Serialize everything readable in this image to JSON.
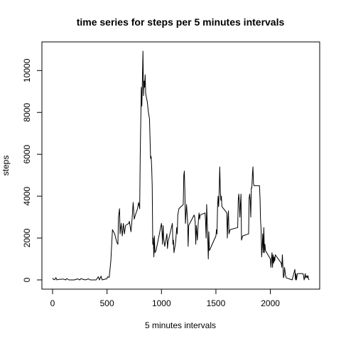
{
  "chart_data": {
    "type": "line",
    "title": "time series for steps per 5 minutes intervals",
    "xlabel": "5 minutes intervals",
    "ylabel": "steps",
    "xlim": [
      0,
      2355
    ],
    "ylim": [
      0,
      10927
    ],
    "x_ticks": [
      0,
      500,
      1000,
      1500,
      2000
    ],
    "y_ticks": [
      0,
      2000,
      4000,
      6000,
      8000,
      10000
    ],
    "grid": false,
    "series": [
      {
        "color": "#000000",
        "points": [
          [
            0,
            91
          ],
          [
            10,
            18
          ],
          [
            20,
            7
          ],
          [
            30,
            110
          ],
          [
            40,
            0
          ],
          [
            50,
            20
          ],
          [
            60,
            25
          ],
          [
            100,
            40
          ],
          [
            120,
            0
          ],
          [
            130,
            60
          ],
          [
            150,
            0
          ],
          [
            200,
            0
          ],
          [
            230,
            50
          ],
          [
            250,
            0
          ],
          [
            260,
            60
          ],
          [
            300,
            0
          ],
          [
            330,
            50
          ],
          [
            345,
            0
          ],
          [
            400,
            0
          ],
          [
            420,
            150
          ],
          [
            430,
            0
          ],
          [
            445,
            180
          ],
          [
            455,
            0
          ],
          [
            500,
            60
          ],
          [
            505,
            150
          ],
          [
            520,
            120
          ],
          [
            535,
            900
          ],
          [
            550,
            2400
          ],
          [
            570,
            2200
          ],
          [
            590,
            1800
          ],
          [
            600,
            1700
          ],
          [
            605,
            3000
          ],
          [
            615,
            3400
          ],
          [
            620,
            2200
          ],
          [
            630,
            2700
          ],
          [
            640,
            2100
          ],
          [
            650,
            2700
          ],
          [
            660,
            2200
          ],
          [
            670,
            2600
          ],
          [
            700,
            2700
          ],
          [
            705,
            2800
          ],
          [
            720,
            2300
          ],
          [
            730,
            2900
          ],
          [
            740,
            3700
          ],
          [
            750,
            2900
          ],
          [
            760,
            3100
          ],
          [
            780,
            3400
          ],
          [
            790,
            3700
          ],
          [
            800,
            3400
          ],
          [
            805,
            6000
          ],
          [
            815,
            9200
          ],
          [
            820,
            8300
          ],
          [
            830,
            10927
          ],
          [
            835,
            8800
          ],
          [
            840,
            9500
          ],
          [
            845,
            9200
          ],
          [
            850,
            9800
          ],
          [
            855,
            8900
          ],
          [
            870,
            8500
          ],
          [
            880,
            8000
          ],
          [
            890,
            7700
          ],
          [
            900,
            5800
          ],
          [
            905,
            5900
          ],
          [
            910,
            5400
          ],
          [
            915,
            4500
          ],
          [
            920,
            1700
          ],
          [
            925,
            2000
          ],
          [
            930,
            1100
          ],
          [
            935,
            2100
          ],
          [
            940,
            1300
          ],
          [
            950,
            1400
          ],
          [
            1000,
            2700
          ],
          [
            1005,
            2300
          ],
          [
            1010,
            1700
          ],
          [
            1015,
            2600
          ],
          [
            1020,
            2000
          ],
          [
            1030,
            1600
          ],
          [
            1050,
            2200
          ],
          [
            1055,
            1500
          ],
          [
            1060,
            1800
          ],
          [
            1100,
            2700
          ],
          [
            1105,
            1700
          ],
          [
            1110,
            1900
          ],
          [
            1115,
            1300
          ],
          [
            1130,
            1800
          ],
          [
            1140,
            2500
          ],
          [
            1145,
            2200
          ],
          [
            1150,
            3100
          ],
          [
            1160,
            3400
          ],
          [
            1200,
            3600
          ],
          [
            1205,
            5000
          ],
          [
            1210,
            5200
          ],
          [
            1215,
            4200
          ],
          [
            1220,
            2700
          ],
          [
            1230,
            3600
          ],
          [
            1240,
            2800
          ],
          [
            1245,
            1600
          ],
          [
            1250,
            2600
          ],
          [
            1300,
            3100
          ],
          [
            1305,
            3000
          ],
          [
            1310,
            2700
          ],
          [
            1315,
            1700
          ],
          [
            1320,
            2600
          ],
          [
            1330,
            1900
          ],
          [
            1335,
            2500
          ],
          [
            1340,
            2900
          ],
          [
            1345,
            3200
          ],
          [
            1350,
            2900
          ],
          [
            1355,
            3100
          ],
          [
            1400,
            3200
          ],
          [
            1405,
            2800
          ],
          [
            1410,
            2000
          ],
          [
            1415,
            3600
          ],
          [
            1420,
            2800
          ],
          [
            1425,
            2000
          ],
          [
            1430,
            1000
          ],
          [
            1435,
            2300
          ],
          [
            1440,
            1400
          ],
          [
            1500,
            2100
          ],
          [
            1505,
            2400
          ],
          [
            1510,
            2200
          ],
          [
            1515,
            3500
          ],
          [
            1520,
            4000
          ],
          [
            1525,
            3500
          ],
          [
            1530,
            4200
          ],
          [
            1535,
            5400
          ],
          [
            1540,
            4400
          ],
          [
            1545,
            3800
          ],
          [
            1550,
            4000
          ],
          [
            1555,
            3500
          ],
          [
            1600,
            3200
          ],
          [
            1605,
            2000
          ],
          [
            1610,
            2900
          ],
          [
            1615,
            3300
          ],
          [
            1620,
            2200
          ],
          [
            1630,
            2400
          ],
          [
            1700,
            2500
          ],
          [
            1705,
            3800
          ],
          [
            1710,
            4100
          ],
          [
            1715,
            3700
          ],
          [
            1720,
            3000
          ],
          [
            1725,
            3600
          ],
          [
            1730,
            4100
          ],
          [
            1735,
            1900
          ],
          [
            1740,
            2000
          ],
          [
            1745,
            2100
          ],
          [
            1800,
            2200
          ],
          [
            1805,
            3900
          ],
          [
            1810,
            4100
          ],
          [
            1815,
            3800
          ],
          [
            1820,
            3000
          ],
          [
            1825,
            4400
          ],
          [
            1830,
            4400
          ],
          [
            1835,
            5000
          ],
          [
            1840,
            5400
          ],
          [
            1845,
            4600
          ],
          [
            1850,
            4500
          ],
          [
            1855,
            4500
          ],
          [
            1900,
            4500
          ],
          [
            1905,
            3900
          ],
          [
            1910,
            2800
          ],
          [
            1915,
            2400
          ],
          [
            1920,
            1100
          ],
          [
            1925,
            1600
          ],
          [
            1930,
            2200
          ],
          [
            1935,
            1300
          ],
          [
            1940,
            2500
          ],
          [
            1945,
            1300
          ],
          [
            1950,
            1700
          ],
          [
            1955,
            1400
          ],
          [
            2000,
            1000
          ],
          [
            2005,
            600
          ],
          [
            2010,
            1000
          ],
          [
            2015,
            1300
          ],
          [
            2020,
            600
          ],
          [
            2025,
            1200
          ],
          [
            2030,
            800
          ],
          [
            2035,
            1100
          ],
          [
            2040,
            900
          ],
          [
            2045,
            1200
          ],
          [
            2100,
            800
          ],
          [
            2105,
            600
          ],
          [
            2110,
            1200
          ],
          [
            2115,
            700
          ],
          [
            2120,
            100
          ],
          [
            2125,
            200
          ],
          [
            2130,
            600
          ],
          [
            2135,
            400
          ],
          [
            2140,
            200
          ],
          [
            2145,
            100
          ],
          [
            2200,
            0
          ],
          [
            2205,
            100
          ],
          [
            2210,
            200
          ],
          [
            2215,
            300
          ],
          [
            2220,
            400
          ],
          [
            2225,
            500
          ],
          [
            2230,
            0
          ],
          [
            2235,
            300
          ],
          [
            2240,
            0
          ],
          [
            2245,
            200
          ],
          [
            2250,
            300
          ],
          [
            2300,
            300
          ],
          [
            2305,
            200
          ],
          [
            2310,
            0
          ],
          [
            2315,
            100
          ],
          [
            2320,
            300
          ],
          [
            2325,
            100
          ],
          [
            2330,
            150
          ],
          [
            2335,
            200
          ],
          [
            2340,
            100
          ],
          [
            2345,
            200
          ],
          [
            2350,
            50
          ],
          [
            2355,
            0
          ]
        ]
      }
    ]
  }
}
